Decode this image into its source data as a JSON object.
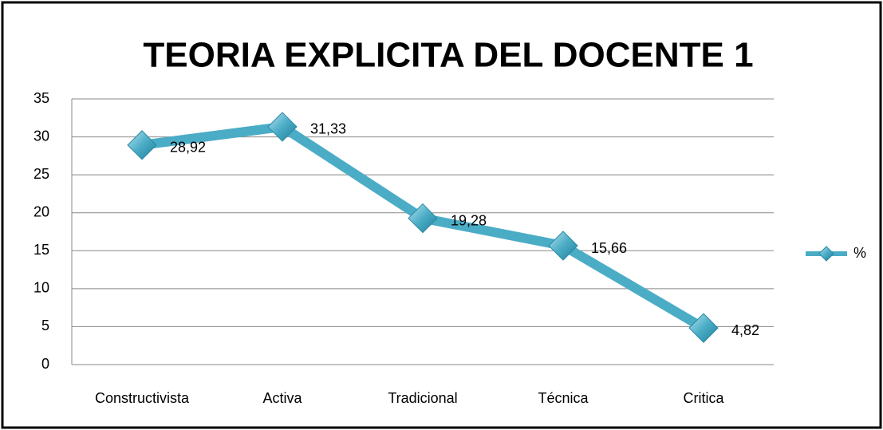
{
  "chart_data": {
    "type": "line",
    "title": "TEORIA EXPLICITA DEL DOCENTE 1",
    "categories": [
      "Constructivista",
      "Activa",
      "Tradicional",
      "Técnica",
      "Critica"
    ],
    "series": [
      {
        "name": "%",
        "color": "#4bacc6",
        "values": [
          28.92,
          31.33,
          19.28,
          15.66,
          4.82
        ],
        "value_labels": [
          "28,92",
          "31,33",
          "19,28",
          "15,66",
          "4,82"
        ]
      }
    ],
    "ylim": [
      0,
      35
    ],
    "yticks": [
      0,
      5,
      10,
      15,
      20,
      25,
      30,
      35
    ],
    "grid": true,
    "legend": "right"
  }
}
